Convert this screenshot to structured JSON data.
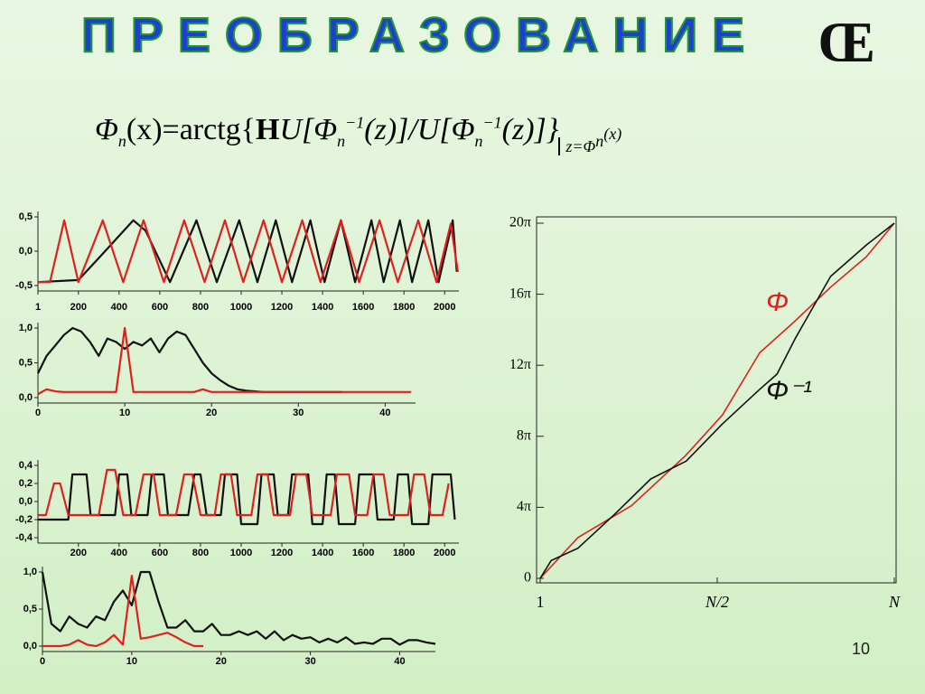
{
  "title": "ПРЕОБРАЗОВАНИЕ",
  "title_mark": "Œ",
  "formula": [
    "Φ",
    "n",
    "(x)=arctg{",
    "Н",
    "U[Φ",
    "n",
    "−1",
    "(z)]/U[Φ",
    "n",
    "−1",
    "(z)]}",
    "z=Φ",
    "n",
    "(x)"
  ],
  "page_number": "10",
  "chart_data": [
    {
      "type": "line",
      "xlim": [
        1,
        2070
      ],
      "ylim": [
        -0.5,
        0.5
      ],
      "xticks": [
        1,
        200,
        400,
        600,
        800,
        1000,
        1200,
        1400,
        1600,
        1800,
        2000
      ],
      "yticks": [
        {
          "value": 0.5,
          "label": "0,5"
        },
        {
          "value": 0,
          "label": "0,0"
        },
        {
          "value": -0.5,
          "label": "-0,5"
        }
      ],
      "series": [
        {
          "color": "#111111",
          "x": [
            1,
            200,
            300,
            470,
            530,
            650,
            780,
            880,
            990,
            1080,
            1170,
            1250,
            1340,
            1410,
            1490,
            1560,
            1640,
            1700,
            1780,
            1840,
            1920,
            1970,
            2040,
            2060
          ],
          "values": [
            -0.45,
            -0.42,
            -0.1,
            0.45,
            0.3,
            -0.45,
            0.45,
            -0.45,
            0.45,
            -0.45,
            0.45,
            -0.45,
            0.45,
            -0.45,
            0.45,
            -0.45,
            0.45,
            -0.45,
            0.45,
            -0.45,
            0.45,
            -0.45,
            0.45,
            -0.3
          ]
        },
        {
          "color": "#e0201c",
          "x": [
            1,
            60,
            130,
            200,
            320,
            420,
            520,
            620,
            720,
            820,
            920,
            1010,
            1110,
            1200,
            1300,
            1390,
            1490,
            1580,
            1680,
            1770,
            1870,
            1960,
            2030,
            2065
          ],
          "values": [
            -0.45,
            -0.45,
            0.45,
            -0.45,
            0.45,
            -0.45,
            0.45,
            -0.45,
            0.45,
            -0.45,
            0.45,
            -0.45,
            0.45,
            -0.45,
            0.45,
            -0.45,
            0.45,
            -0.45,
            0.45,
            -0.45,
            0.45,
            -0.45,
            0.4,
            -0.3
          ]
        }
      ]
    },
    {
      "type": "line",
      "xlim": [
        0,
        43.5
      ],
      "ylim": [
        0,
        1
      ],
      "xticks": [
        0,
        10,
        20,
        30,
        40
      ],
      "yticks": [
        {
          "value": 1,
          "label": "1,0"
        },
        {
          "value": 0.5,
          "label": "0,5"
        },
        {
          "value": 0,
          "label": "0,0"
        }
      ],
      "series": [
        {
          "color": "#111111",
          "x": [
            0,
            1,
            2,
            3,
            4,
            5,
            6,
            7,
            8,
            9,
            10,
            11,
            12,
            13,
            14,
            15,
            16,
            17,
            18,
            19,
            20,
            21,
            22,
            23,
            24,
            25,
            26,
            27,
            28,
            29,
            30,
            31,
            32,
            33,
            34,
            35
          ],
          "values": [
            0.35,
            0.6,
            0.75,
            0.9,
            1.0,
            0.95,
            0.8,
            0.6,
            0.85,
            0.8,
            0.7,
            0.8,
            0.75,
            0.85,
            0.65,
            0.85,
            0.95,
            0.9,
            0.7,
            0.5,
            0.35,
            0.25,
            0.17,
            0.12,
            0.1,
            0.09,
            0.08,
            0.08,
            0.08,
            0.08,
            0.08,
            0.08,
            0.08,
            0.08,
            0.08,
            0.08
          ]
        },
        {
          "color": "#e0201c",
          "x": [
            0,
            1,
            2,
            3,
            4,
            5,
            6,
            7,
            8,
            9,
            10,
            11,
            12,
            13,
            14,
            15,
            16,
            17,
            18,
            19,
            20,
            21,
            22,
            23,
            24,
            25,
            26,
            27,
            28,
            29,
            30,
            31,
            32,
            33,
            34,
            35,
            36,
            37,
            38,
            39,
            40,
            41,
            42,
            43
          ],
          "values": [
            0.05,
            0.12,
            0.09,
            0.08,
            0.08,
            0.08,
            0.08,
            0.08,
            0.08,
            0.08,
            1.0,
            0.08,
            0.08,
            0.08,
            0.08,
            0.08,
            0.08,
            0.08,
            0.08,
            0.12,
            0.08,
            0.08,
            0.08,
            0.08,
            0.08,
            0.08,
            0.08,
            0.08,
            0.08,
            0.08,
            0.08,
            0.08,
            0.08,
            0.08,
            0.08,
            0.08,
            0.08,
            0.08,
            0.08,
            0.08,
            0.08,
            0.08,
            0.08,
            0.08
          ]
        }
      ]
    },
    {
      "type": "line",
      "xlim": [
        1,
        2070
      ],
      "ylim": [
        -0.4,
        0.4
      ],
      "xticks": [
        200,
        400,
        600,
        800,
        1000,
        1200,
        1400,
        1600,
        1800,
        2000
      ],
      "yticks": [
        {
          "value": 0.4,
          "label": "0,4"
        },
        {
          "value": 0.2,
          "label": "0,2"
        },
        {
          "value": 0,
          "label": "0,0"
        },
        {
          "value": -0.2,
          "label": "-0,2"
        },
        {
          "value": -0.4,
          "label": "-0,4"
        }
      ],
      "series": [
        {
          "color": "#111111",
          "x": [
            1,
            150,
            170,
            240,
            260,
            380,
            400,
            440,
            460,
            540,
            560,
            620,
            640,
            740,
            770,
            800,
            830,
            900,
            920,
            980,
            1000,
            1080,
            1100,
            1160,
            1180,
            1230,
            1250,
            1330,
            1350,
            1400,
            1420,
            1460,
            1480,
            1560,
            1580,
            1650,
            1670,
            1750,
            1770,
            1820,
            1840,
            1920,
            1940,
            2030,
            2050
          ],
          "values": [
            -0.2,
            -0.2,
            0.3,
            0.3,
            -0.15,
            -0.15,
            0.3,
            0.3,
            -0.15,
            -0.15,
            0.3,
            0.3,
            -0.15,
            -0.15,
            0.3,
            0.3,
            -0.15,
            -0.15,
            0.3,
            0.3,
            -0.25,
            -0.25,
            0.3,
            0.3,
            -0.15,
            -0.15,
            0.3,
            0.3,
            -0.25,
            -0.25,
            0.3,
            0.3,
            -0.25,
            -0.25,
            0.3,
            0.3,
            -0.2,
            -0.2,
            0.3,
            0.3,
            -0.25,
            -0.25,
            0.3,
            0.3,
            -0.2
          ]
        },
        {
          "color": "#e0201c",
          "x": [
            1,
            40,
            80,
            110,
            150,
            300,
            340,
            380,
            420,
            480,
            520,
            570,
            600,
            680,
            720,
            760,
            800,
            870,
            900,
            950,
            980,
            1050,
            1080,
            1130,
            1160,
            1240,
            1270,
            1320,
            1350,
            1440,
            1470,
            1530,
            1560,
            1620,
            1650,
            1700,
            1730,
            1820,
            1850,
            1900,
            1930,
            1990,
            2020
          ],
          "values": [
            -0.15,
            -0.15,
            0.2,
            0.2,
            -0.15,
            -0.15,
            0.35,
            0.35,
            -0.15,
            -0.15,
            0.3,
            0.3,
            -0.15,
            -0.15,
            0.3,
            0.3,
            -0.15,
            -0.15,
            0.3,
            0.3,
            -0.15,
            -0.15,
            0.3,
            0.3,
            -0.15,
            -0.15,
            0.3,
            0.3,
            -0.15,
            -0.15,
            0.3,
            0.3,
            -0.15,
            -0.15,
            0.3,
            0.3,
            -0.15,
            -0.15,
            0.3,
            0.3,
            -0.15,
            -0.15,
            0.2
          ]
        }
      ]
    },
    {
      "type": "line",
      "xlim": [
        0,
        44
      ],
      "ylim": [
        0,
        1
      ],
      "xticks": [
        0,
        10,
        20,
        30,
        40
      ],
      "yticks": [
        {
          "value": 1,
          "label": "1,0"
        },
        {
          "value": 0.5,
          "label": "0,5"
        },
        {
          "value": 0,
          "label": "0,0"
        }
      ],
      "series": [
        {
          "color": "#111111",
          "x": [
            0,
            1,
            2,
            3,
            4,
            5,
            6,
            7,
            8,
            9,
            10,
            11,
            12,
            13,
            14,
            15,
            16,
            17,
            18,
            19,
            20,
            21,
            22,
            23,
            24,
            25,
            26,
            27,
            28,
            29,
            30,
            31,
            32,
            33,
            34,
            35,
            36,
            37,
            38,
            39,
            40,
            41,
            42,
            43,
            44
          ],
          "values": [
            1.0,
            0.3,
            0.2,
            0.4,
            0.3,
            0.25,
            0.4,
            0.35,
            0.6,
            0.75,
            0.55,
            1.0,
            1.0,
            0.6,
            0.25,
            0.25,
            0.35,
            0.2,
            0.2,
            0.3,
            0.15,
            0.15,
            0.2,
            0.15,
            0.2,
            0.1,
            0.2,
            0.08,
            0.15,
            0.1,
            0.12,
            0.05,
            0.1,
            0.05,
            0.12,
            0.03,
            0.05,
            0.03,
            0.1,
            0.1,
            0.02,
            0.08,
            0.08,
            0.05,
            0.03
          ]
        },
        {
          "color": "#e0201c",
          "x": [
            0,
            1,
            2,
            3,
            4,
            5,
            6,
            7,
            8,
            9,
            10,
            11,
            12,
            13,
            14,
            15,
            16,
            17,
            18
          ],
          "values": [
            0,
            0,
            0,
            0.02,
            0.08,
            0.02,
            0,
            0.05,
            0.15,
            0.02,
            0.95,
            0.1,
            0.12,
            0.15,
            0.18,
            0.12,
            0.05,
            0,
            0
          ]
        }
      ]
    },
    {
      "type": "line",
      "xlim": [
        1,
        2048
      ],
      "ylim": [
        0,
        62.832
      ],
      "xticks": [
        1,
        {
          "value": 1024.5,
          "label": "N/2"
        },
        {
          "value": 2048,
          "label": "N"
        }
      ],
      "yticks": [
        0,
        {
          "value": 12.566,
          "label": "4π"
        },
        {
          "value": 25.133,
          "label": "8π"
        },
        {
          "value": 37.699,
          "label": "12π"
        },
        {
          "value": 50.265,
          "label": "16π"
        },
        {
          "value": 62.832,
          "label": "20π"
        }
      ],
      "series": [
        {
          "name": "Φ",
          "color": "#e0201c",
          "x": [
            1,
            220,
            530,
            840,
            1055,
            1270,
            1475,
            1680,
            1885,
            2048
          ],
          "values": [
            0,
            7.23,
            12.88,
            21.68,
            28.9,
            39.9,
            45.55,
            51.52,
            56.86,
            62.83
          ]
        },
        {
          "name": "Φ⁻¹",
          "color": "#111111",
          "x": [
            1,
            64,
            220,
            430,
            640,
            845,
            1055,
            1265,
            1370,
            1475,
            1680,
            1890,
            2048
          ],
          "values": [
            0,
            3.14,
            5.34,
            11.31,
            17.59,
            20.73,
            27.33,
            33.3,
            36.13,
            42.41,
            53.41,
            59.06,
            62.83
          ]
        }
      ]
    }
  ]
}
